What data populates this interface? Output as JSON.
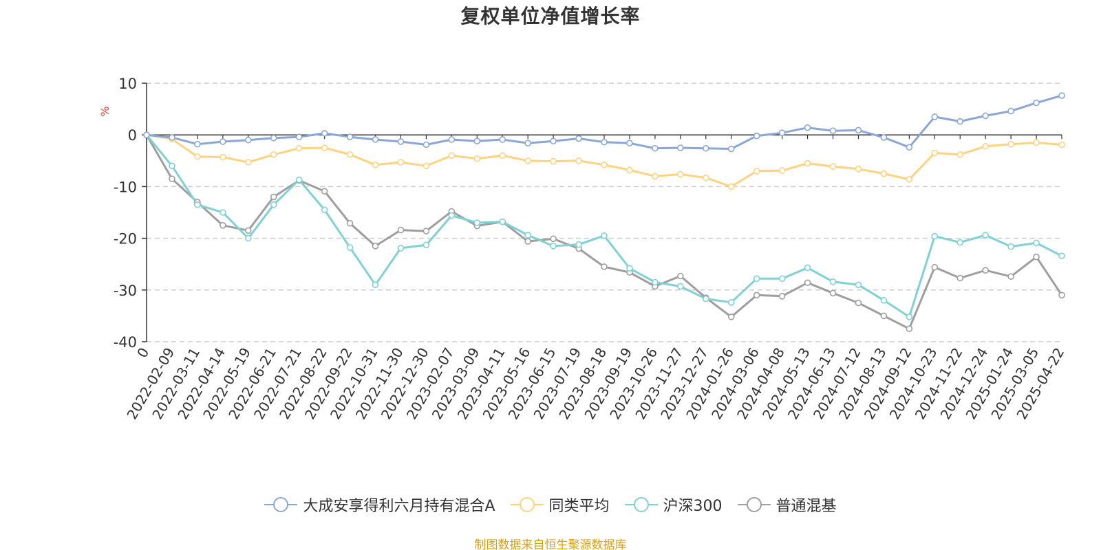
{
  "header": {
    "title": "复权单位净值增长率"
  },
  "footer": {
    "source": "制图数据来自恒生聚源数据库"
  },
  "chart_data": {
    "type": "line",
    "title": "复权单位净值增长率",
    "ylabel": "%",
    "ylim": [
      -40,
      10
    ],
    "yticks": [
      "10",
      "0",
      "-10",
      "-20",
      "-30",
      "-40"
    ],
    "grid": true,
    "legend_position": "bottom",
    "categories": [
      "0",
      "2022-02-09",
      "2022-03-11",
      "2022-04-14",
      "2022-05-19",
      "2022-06-21",
      "2022-07-21",
      "2022-08-22",
      "2022-09-22",
      "2022-10-31",
      "2022-11-30",
      "2022-12-30",
      "2023-02-07",
      "2023-03-09",
      "2023-04-11",
      "2023-05-16",
      "2023-06-15",
      "2023-07-19",
      "2023-08-18",
      "2023-09-19",
      "2023-10-26",
      "2023-11-27",
      "2023-12-27",
      "2024-01-26",
      "2024-03-06",
      "2024-04-08",
      "2024-05-13",
      "2024-06-13",
      "2024-07-12",
      "2024-08-13",
      "2024-09-12",
      "2024-10-23",
      "2024-11-22",
      "2024-12-24",
      "2025-01-24",
      "2025-03-05",
      "2025-04-22"
    ],
    "series": [
      {
        "name": "大成安享得利六月持有混合A",
        "color": "#8aa6d8",
        "values": [
          0,
          -0.5,
          -1.8,
          -1.3,
          -1.0,
          -0.6,
          -0.4,
          0.3,
          -0.4,
          -0.9,
          -1.3,
          -1.9,
          -0.9,
          -1.2,
          -0.9,
          -1.6,
          -1.2,
          -0.7,
          -1.4,
          -1.6,
          -2.6,
          -2.5,
          -2.6,
          -2.7,
          -0.2,
          0.4,
          1.4,
          0.8,
          0.9,
          -0.5,
          -2.4,
          3.5,
          2.6,
          3.7,
          4.6,
          6.2,
          7.6
        ]
      },
      {
        "name": "同类平均",
        "color": "#ffd27f",
        "values": [
          0,
          -0.8,
          -4.2,
          -4.3,
          -5.3,
          -3.8,
          -2.6,
          -2.5,
          -3.8,
          -5.8,
          -5.3,
          -6.0,
          -4.0,
          -4.6,
          -4.0,
          -5.0,
          -5.1,
          -5.0,
          -5.8,
          -6.8,
          -8.0,
          -7.6,
          -8.3,
          -10.0,
          -7.0,
          -6.9,
          -5.5,
          -6.1,
          -6.6,
          -7.5,
          -8.6,
          -3.5,
          -3.8,
          -2.2,
          -1.8,
          -1.5,
          -1.9
        ]
      },
      {
        "name": "沪深300",
        "color": "#7fd1d6",
        "values": [
          0,
          -6.0,
          -13.5,
          -15.0,
          -20.0,
          -13.5,
          -8.7,
          -14.5,
          -21.8,
          -29.0,
          -21.9,
          -21.3,
          -15.6,
          -17.0,
          -16.8,
          -19.4,
          -21.5,
          -21.2,
          -19.5,
          -25.8,
          -28.5,
          -29.3,
          -31.7,
          -32.4,
          -27.8,
          -27.8,
          -25.7,
          -28.4,
          -29.0,
          -32.0,
          -35.2,
          -19.6,
          -20.8,
          -19.4,
          -21.6,
          -20.9,
          -23.4
        ]
      },
      {
        "name": "普通混基",
        "color": "#9e9e9e",
        "values": [
          0,
          -8.5,
          -13.0,
          -17.5,
          -18.5,
          -12.0,
          -8.8,
          -10.9,
          -17.1,
          -21.5,
          -18.4,
          -18.6,
          -14.8,
          -17.6,
          -16.8,
          -20.6,
          -20.1,
          -22.0,
          -25.5,
          -26.6,
          -29.3,
          -27.3,
          -31.5,
          -35.2,
          -31.0,
          -31.2,
          -28.6,
          -30.6,
          -32.5,
          -35.0,
          -37.5,
          -25.6,
          -27.7,
          -26.2,
          -27.4,
          -23.6,
          -31.0
        ]
      }
    ]
  }
}
